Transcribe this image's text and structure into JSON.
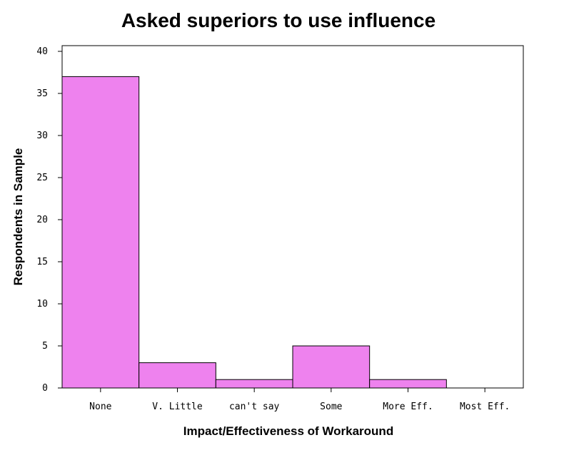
{
  "chart_data": {
    "type": "bar",
    "title": "Asked superiors to use influence",
    "x_label": "Impact/Effectiveness of Workaround",
    "y_label": "Respondents in Sample",
    "categories": [
      "None",
      "V. Little",
      "can't say",
      "Some",
      "More Eff.",
      "Most Eff."
    ],
    "values": [
      37,
      3,
      1,
      5,
      1,
      0
    ],
    "color": "#ee82ee",
    "ylim": [
      0,
      40
    ],
    "yticks": [
      0,
      5,
      10,
      15,
      20,
      25,
      30,
      35,
      40
    ]
  }
}
